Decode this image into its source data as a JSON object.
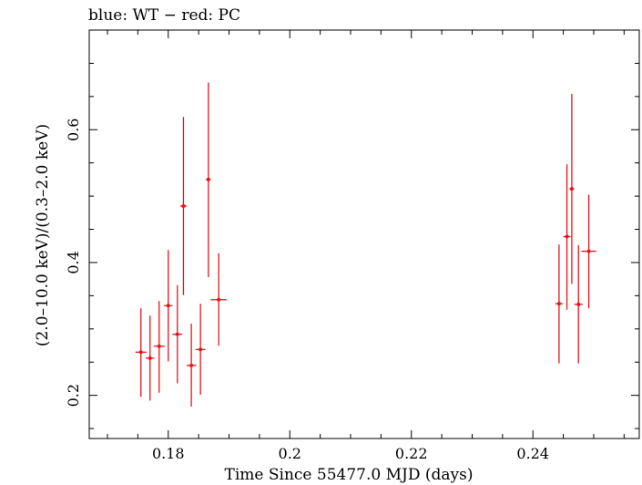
{
  "chart_data": {
    "type": "scatter",
    "title": "blue: WT − red: PC",
    "xlabel": "Time Since 55477.0 MJD (days)",
    "ylabel": "(2.0–10.0 keV)/(0.3–2.0 keV)",
    "xlim": [
      0.167,
      0.2575
    ],
    "ylim": [
      0.135,
      0.75
    ],
    "xticks": [
      0.18,
      0.2,
      0.22,
      0.24
    ],
    "xtick_labels": [
      "0.18",
      "0.2",
      "0.22",
      "0.24"
    ],
    "yticks": [
      0.2,
      0.4,
      0.6
    ],
    "ytick_labels": [
      "0.2",
      "0.4",
      "0.6"
    ],
    "grid": false,
    "series": [
      {
        "color": "#e8141c",
        "marker": "dot",
        "points": [
          {
            "x": 0.1755,
            "y": 0.265,
            "xerr": 0.0009,
            "ylo": 0.198,
            "yhi": 0.331
          },
          {
            "x": 0.177,
            "y": 0.256,
            "xerr": 0.0007,
            "ylo": 0.192,
            "yhi": 0.32
          },
          {
            "x": 0.1785,
            "y": 0.274,
            "xerr": 0.0009,
            "ylo": 0.204,
            "yhi": 0.342
          },
          {
            "x": 0.18,
            "y": 0.335,
            "xerr": 0.0007,
            "ylo": 0.251,
            "yhi": 0.419
          },
          {
            "x": 0.1815,
            "y": 0.292,
            "xerr": 0.0008,
            "ylo": 0.218,
            "yhi": 0.366
          },
          {
            "x": 0.1825,
            "y": 0.485,
            "xerr": 0.0005,
            "ylo": 0.351,
            "yhi": 0.619
          },
          {
            "x": 0.1838,
            "y": 0.245,
            "xerr": 0.0008,
            "ylo": 0.183,
            "yhi": 0.308
          },
          {
            "x": 0.1853,
            "y": 0.269,
            "xerr": 0.0008,
            "ylo": 0.201,
            "yhi": 0.338
          },
          {
            "x": 0.1866,
            "y": 0.525,
            "xerr": 0.0004,
            "ylo": 0.378,
            "yhi": 0.671
          },
          {
            "x": 0.1883,
            "y": 0.344,
            "xerr": 0.0013,
            "ylo": 0.275,
            "yhi": 0.414
          },
          {
            "x": 0.2443,
            "y": 0.338,
            "xerr": 0.0006,
            "ylo": 0.248,
            "yhi": 0.427
          },
          {
            "x": 0.2456,
            "y": 0.439,
            "xerr": 0.0006,
            "ylo": 0.329,
            "yhi": 0.548
          },
          {
            "x": 0.2464,
            "y": 0.511,
            "xerr": 0.0004,
            "ylo": 0.368,
            "yhi": 0.654
          },
          {
            "x": 0.2475,
            "y": 0.337,
            "xerr": 0.0007,
            "ylo": 0.248,
            "yhi": 0.426
          },
          {
            "x": 0.2492,
            "y": 0.417,
            "xerr": 0.0012,
            "ylo": 0.331,
            "yhi": 0.502
          }
        ]
      }
    ]
  }
}
